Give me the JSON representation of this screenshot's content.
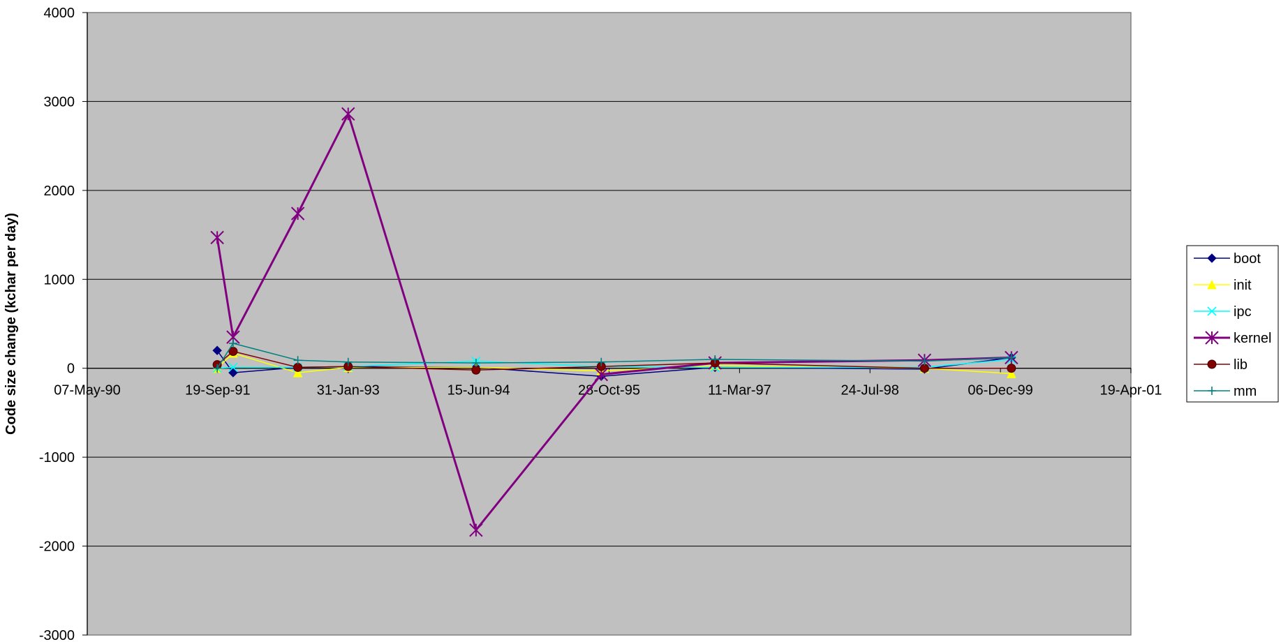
{
  "chart_data": {
    "type": "line",
    "title": "",
    "xlabel": "",
    "ylabel": "Code size change (kchar per day)",
    "x_axis_type": "date",
    "xlim": [
      "1990-05-07",
      "2001-04-19"
    ],
    "ylim": [
      -3000,
      4000
    ],
    "x_tick_labels": [
      "07-May-90",
      "19-Sep-91",
      "31-Jan-93",
      "15-Jun-94",
      "28-Oct-95",
      "11-Mar-97",
      "24-Jul-98",
      "06-Dec-99",
      "19-Apr-01"
    ],
    "x_ticks": [
      "1990-05-07",
      "1991-09-19",
      "1993-01-31",
      "1994-06-15",
      "1995-10-28",
      "1997-03-11",
      "1998-07-24",
      "1999-12-06",
      "2001-04-19"
    ],
    "y_ticks": [
      -3000,
      -2000,
      -1000,
      0,
      1000,
      2000,
      3000,
      4000
    ],
    "y_tick_labels": [
      "-3000",
      "-2000",
      "-1000",
      "0",
      "1000",
      "2000",
      "3000",
      "4000"
    ],
    "grid": "horizontal",
    "plot_background": "#c0c0c0",
    "legend_position": "right",
    "series": [
      {
        "name": "boot",
        "color": "#000080",
        "marker": "diamond",
        "line_width": 1.5,
        "x": [
          "1991-09-17",
          "1991-11-17",
          "1992-07-22",
          "1993-01-31",
          "1994-06-05",
          "1995-09-28",
          "1996-12-07",
          "1999-02-18",
          "2000-01-17"
        ],
        "y": [
          200,
          -50,
          10,
          20,
          10,
          -90,
          10,
          -10,
          120
        ]
      },
      {
        "name": "init",
        "color": "#ffff00",
        "marker": "triangle",
        "line_width": 1.5,
        "x": [
          "1991-09-17",
          "1991-11-17",
          "1992-07-22",
          "1993-01-31",
          "1994-06-05",
          "1995-09-28",
          "1996-12-07",
          "1999-02-18",
          "2000-01-17"
        ],
        "y": [
          0,
          170,
          -50,
          10,
          10,
          -30,
          30,
          0,
          -60
        ]
      },
      {
        "name": "ipc",
        "color": "#00ffff",
        "marker": "x",
        "line_width": 1.5,
        "x": [
          "1991-09-17",
          "1991-11-17",
          "1992-07-22",
          "1993-01-31",
          "1994-06-05",
          "1995-09-28",
          "1996-12-07",
          "1999-02-18",
          "2000-01-17"
        ],
        "y": [
          0,
          10,
          10,
          20,
          80,
          20,
          10,
          10,
          100
        ]
      },
      {
        "name": "kernel",
        "color": "#800080",
        "marker": "star",
        "line_width": 3,
        "x": [
          "1991-09-17",
          "1991-11-17",
          "1992-07-22",
          "1993-01-31",
          "1994-06-05",
          "1995-09-28",
          "1996-12-07",
          "1999-02-18",
          "2000-01-17"
        ],
        "y": [
          1470,
          350,
          1740,
          2860,
          -1820,
          -70,
          60,
          90,
          120
        ]
      },
      {
        "name": "lib",
        "color": "#800000",
        "marker": "circle",
        "line_width": 1.5,
        "x": [
          "1991-09-17",
          "1991-11-17",
          "1992-07-22",
          "1993-01-31",
          "1994-06-05",
          "1995-09-28",
          "1996-12-07",
          "1999-02-18",
          "2000-01-17"
        ],
        "y": [
          40,
          190,
          10,
          20,
          -20,
          20,
          60,
          0,
          0
        ]
      },
      {
        "name": "mm",
        "color": "#008080",
        "marker": "plus",
        "line_width": 1.5,
        "x": [
          "1991-09-17",
          "1991-11-17",
          "1992-07-22",
          "1993-01-31",
          "1994-06-05",
          "1995-09-28",
          "1996-12-07",
          "1999-02-18",
          "2000-01-17"
        ],
        "y": [
          0,
          280,
          90,
          70,
          60,
          70,
          100,
          80,
          120
        ]
      }
    ]
  }
}
